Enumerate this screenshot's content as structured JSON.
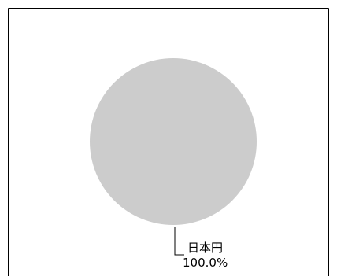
{
  "chart_data": {
    "type": "pie",
    "title": "",
    "slices": [
      {
        "label": "日本円",
        "value": 100.0,
        "percent_label": "100.0%",
        "color": "#cccccc"
      }
    ],
    "legend": "none",
    "label_style": "leader-line"
  }
}
